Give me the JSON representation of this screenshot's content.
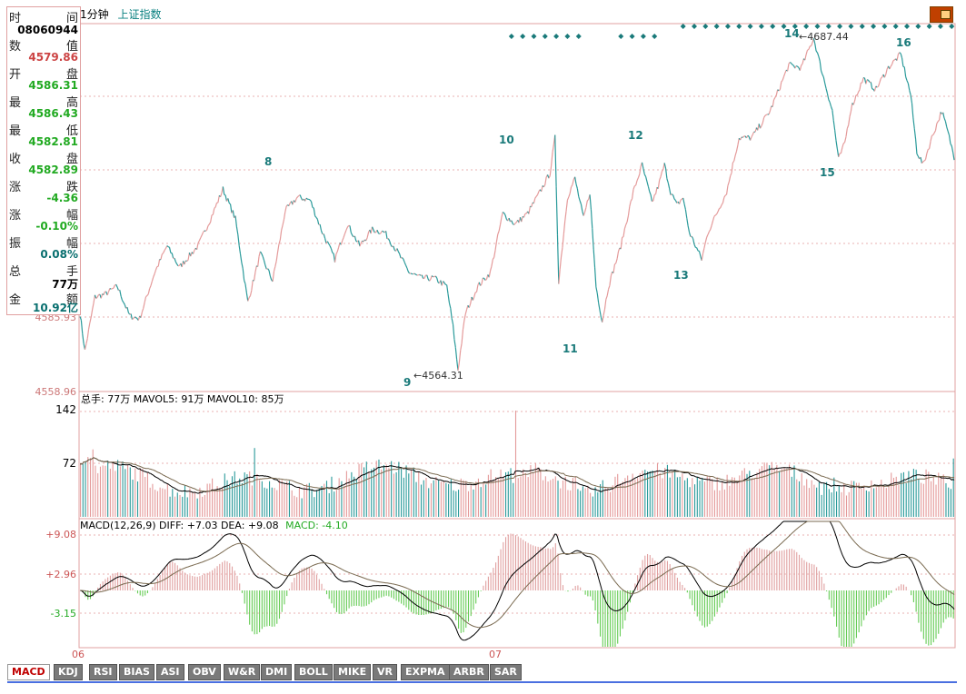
{
  "header": {
    "period": "1分钟",
    "index_name": "上证指数"
  },
  "info_panel": {
    "rows": [
      {
        "left": "时",
        "right": "间",
        "value": "08060944",
        "color": "#000000"
      },
      {
        "left": "数",
        "right": "值",
        "value": "4579.86",
        "color": "#cc4444"
      },
      {
        "left": "开",
        "right": "盘",
        "value": "4586.31",
        "color": "#22aa22"
      },
      {
        "left": "最",
        "right": "高",
        "value": "4586.43",
        "color": "#22aa22"
      },
      {
        "left": "最",
        "right": "低",
        "value": "4582.81",
        "color": "#22aa22"
      },
      {
        "left": "收",
        "right": "盘",
        "value": "4582.89",
        "color": "#22aa22"
      },
      {
        "left": "涨",
        "right": "跌",
        "value": "-4.36",
        "color": "#22aa22"
      },
      {
        "left": "涨",
        "right": "幅",
        "value": "-0.10%",
        "color": "#22aa22"
      },
      {
        "left": "振",
        "right": "幅",
        "value": "0.08%",
        "color": "#0a7070"
      },
      {
        "left": "总",
        "right": "手",
        "value": "77万",
        "color": "#000000"
      },
      {
        "left": "金",
        "right": "额",
        "value": "10.92亿",
        "color": "#0a7070"
      }
    ]
  },
  "price_panel": {
    "y_labels": [
      "4585.93",
      "4558.96"
    ],
    "markers": [
      "8",
      "9",
      "10",
      "11",
      "12",
      "13",
      "14",
      "15",
      "16"
    ],
    "low_annotation": "←4564.31",
    "high_annotation": "←4687.44"
  },
  "volume_panel": {
    "legend": "总手: 77万 MAVOL5: 91万 MAVOL10: 85万",
    "y_labels": [
      "142",
      "72"
    ]
  },
  "macd_panel": {
    "legend_prefix": "MACD(12,26,9) DIFF: +7.03 DEA: +9.08",
    "legend_macd": "MACD: -4.10",
    "y_labels": [
      "+9.08",
      "+2.96",
      "-3.15"
    ]
  },
  "x_labels": [
    "06",
    "07"
  ],
  "tabs": [
    "MACD",
    "KDJ",
    "RSI",
    "BIAS",
    "ASI",
    "OBV",
    "W&R",
    "DMI",
    "BOLL",
    "MIKE",
    "VR",
    "EXPMA",
    "ARBR",
    "SAR"
  ],
  "colors": {
    "up": "#e49a9a",
    "down": "#2a9a9a",
    "frame": "#e0a0a0",
    "macd_pos": "#e0a0a0",
    "macd_neg": "#66cc55",
    "dots": "#1a7a7a"
  },
  "chart_data": {
    "type": "line",
    "title": "上证指数",
    "price_anchors": [
      [
        0,
        4585
      ],
      [
        4,
        4571
      ],
      [
        12,
        4591
      ],
      [
        20,
        4592
      ],
      [
        30,
        4595
      ],
      [
        40,
        4584
      ],
      [
        48,
        4583
      ],
      [
        60,
        4600
      ],
      [
        70,
        4610
      ],
      [
        80,
        4602
      ],
      [
        95,
        4610
      ],
      [
        105,
        4620
      ],
      [
        115,
        4631
      ],
      [
        125,
        4620
      ],
      [
        135,
        4589
      ],
      [
        145,
        4607
      ],
      [
        155,
        4597
      ],
      [
        165,
        4623
      ],
      [
        175,
        4628
      ],
      [
        185,
        4627
      ],
      [
        195,
        4615
      ],
      [
        205,
        4605
      ],
      [
        215,
        4618
      ],
      [
        225,
        4610
      ],
      [
        235,
        4616
      ],
      [
        245,
        4615
      ],
      [
        255,
        4608
      ],
      [
        265,
        4600
      ],
      [
        275,
        4598
      ],
      [
        285,
        4598
      ],
      [
        295,
        4595
      ],
      [
        300,
        4580
      ],
      [
        304,
        4564
      ],
      [
        310,
        4585
      ],
      [
        320,
        4595
      ],
      [
        330,
        4600
      ],
      [
        340,
        4622
      ],
      [
        350,
        4618
      ],
      [
        360,
        4622
      ],
      [
        370,
        4630
      ],
      [
        378,
        4637
      ],
      [
        382,
        4650
      ],
      [
        385,
        4597
      ],
      [
        392,
        4628
      ],
      [
        398,
        4635
      ],
      [
        405,
        4620
      ],
      [
        410,
        4630
      ],
      [
        415,
        4595
      ],
      [
        420,
        4582
      ],
      [
        425,
        4595
      ],
      [
        435,
        4610
      ],
      [
        445,
        4630
      ],
      [
        452,
        4640
      ],
      [
        460,
        4626
      ],
      [
        465,
        4632
      ],
      [
        470,
        4640
      ],
      [
        475,
        4630
      ],
      [
        480,
        4625
      ],
      [
        485,
        4628
      ],
      [
        490,
        4615
      ],
      [
        495,
        4610
      ],
      [
        500,
        4605
      ],
      [
        505,
        4615
      ],
      [
        510,
        4620
      ],
      [
        520,
        4630
      ],
      [
        530,
        4650
      ],
      [
        540,
        4650
      ],
      [
        555,
        4660
      ],
      [
        570,
        4677
      ],
      [
        580,
        4676
      ],
      [
        590,
        4687
      ],
      [
        597,
        4674
      ],
      [
        605,
        4660
      ],
      [
        610,
        4642
      ],
      [
        615,
        4648
      ],
      [
        620,
        4661
      ],
      [
        630,
        4672
      ],
      [
        640,
        4668
      ],
      [
        650,
        4676
      ],
      [
        660,
        4681
      ],
      [
        668,
        4666
      ],
      [
        673,
        4645
      ],
      [
        678,
        4640
      ],
      [
        685,
        4650
      ],
      [
        693,
        4660
      ],
      [
        698,
        4652
      ],
      [
        703,
        4643
      ]
    ],
    "n_points": 704,
    "volume": {
      "type": "bar",
      "ylim": [
        0,
        142
      ],
      "mavol5_label": "MAVOL5",
      "mavol10_label": "MAVOL10"
    },
    "macd": {
      "type": "bar",
      "diff": 7.03,
      "dea": 9.08,
      "macd": -4.1,
      "ylim": [
        -6,
        10
      ]
    }
  }
}
